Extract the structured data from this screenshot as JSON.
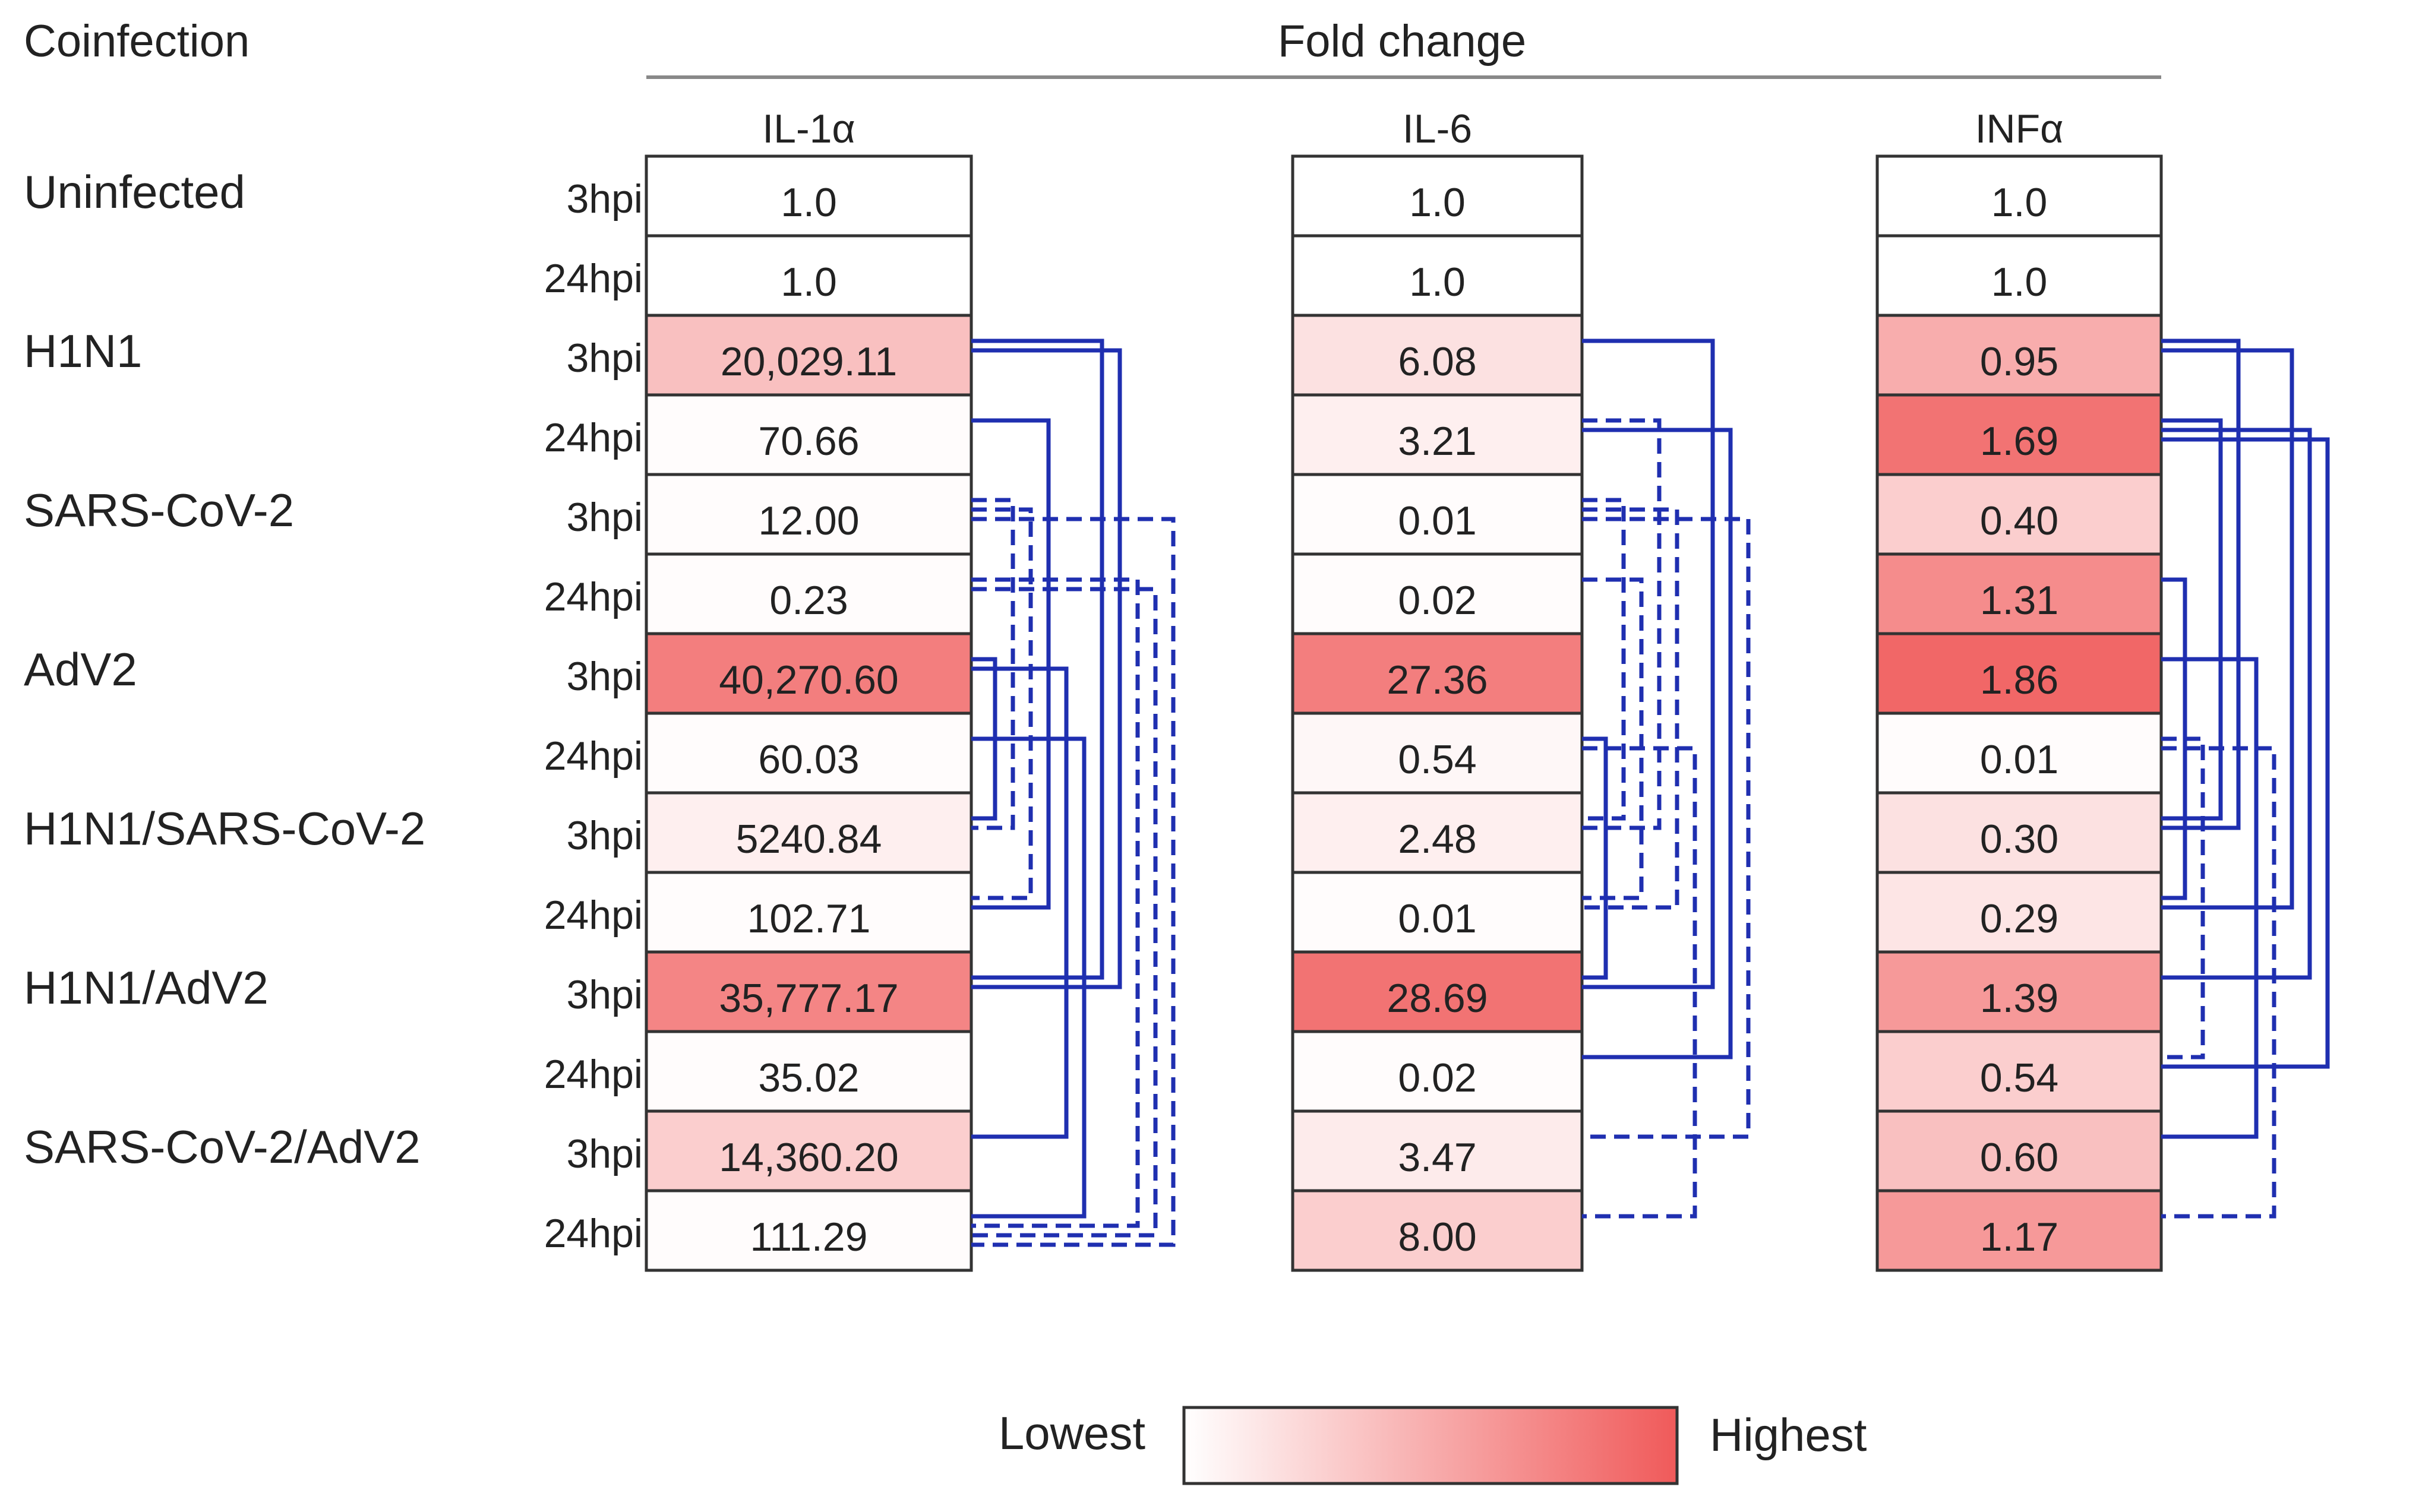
{
  "chart_data": {
    "type": "heatmap",
    "title": "Fold change",
    "row_header": "Coinfection",
    "groups": [
      "Uninfected",
      "H1N1",
      "SARS-CoV-2",
      "AdV2",
      "H1N1/SARS-CoV-2",
      "H1N1/AdV2",
      "SARS-CoV-2/AdV2"
    ],
    "timepoints": [
      "3hpi",
      "24hpi"
    ],
    "columns": [
      {
        "name": "IL-1α",
        "values": [
          "1.0",
          "1.0",
          "20,029.11",
          "70.66",
          "12.00",
          "0.23",
          "40,270.60",
          "60.03",
          "5240.84",
          "102.71",
          "35,777.17",
          "35.02",
          "14,360.20",
          "111.29"
        ],
        "intensity": [
          0,
          0,
          0.38,
          0.02,
          0.02,
          0.02,
          0.78,
          0.02,
          0.1,
          0.02,
          0.74,
          0.02,
          0.3,
          0.02
        ],
        "brackets": [
          {
            "from": 2,
            "to": 10,
            "style": "solid"
          },
          {
            "from": 2,
            "to": 10,
            "style": "solid"
          },
          {
            "from": 3,
            "to": 9,
            "style": "solid"
          },
          {
            "from": 4,
            "to": 8,
            "style": "dashed"
          },
          {
            "from": 4,
            "to": 9,
            "style": "dashed"
          },
          {
            "from": 4,
            "to": 13,
            "style": "dashed"
          },
          {
            "from": 5,
            "to": 13,
            "style": "dashed"
          },
          {
            "from": 5,
            "to": 13,
            "style": "dashed"
          },
          {
            "from": 6,
            "to": 8,
            "style": "solid"
          },
          {
            "from": 6,
            "to": 12,
            "style": "solid"
          },
          {
            "from": 7,
            "to": 13,
            "style": "solid"
          }
        ]
      },
      {
        "name": "IL-6",
        "values": [
          "1.0",
          "1.0",
          "6.08",
          "3.21",
          "0.01",
          "0.02",
          "27.36",
          "0.54",
          "2.48",
          "0.01",
          "28.69",
          "0.02",
          "3.47",
          "8.00"
        ],
        "intensity": [
          0,
          0,
          0.18,
          0.1,
          0.02,
          0.02,
          0.78,
          0.05,
          0.1,
          0.02,
          0.85,
          0.02,
          0.12,
          0.3
        ],
        "brackets": [
          {
            "from": 2,
            "to": 10,
            "style": "solid"
          },
          {
            "from": 3,
            "to": 8,
            "style": "dashed"
          },
          {
            "from": 3,
            "to": 11,
            "style": "solid"
          },
          {
            "from": 4,
            "to": 8,
            "style": "dashed"
          },
          {
            "from": 4,
            "to": 9,
            "style": "dashed"
          },
          {
            "from": 4,
            "to": 12,
            "style": "dashed"
          },
          {
            "from": 5,
            "to": 9,
            "style": "dashed"
          },
          {
            "from": 7,
            "to": 10,
            "style": "solid"
          },
          {
            "from": 7,
            "to": 13,
            "style": "dashed"
          }
        ]
      },
      {
        "name": "INFα",
        "values": [
          "1.0",
          "1.0",
          "0.95",
          "1.69",
          "0.40",
          "1.31",
          "1.86",
          "0.01",
          "0.30",
          "0.29",
          "1.39",
          "0.54",
          "0.60",
          "1.17"
        ],
        "intensity": [
          0,
          0,
          0.5,
          0.85,
          0.3,
          0.7,
          0.92,
          0.02,
          0.18,
          0.16,
          0.62,
          0.3,
          0.38,
          0.62
        ],
        "brackets": [
          {
            "from": 2,
            "to": 8,
            "style": "solid"
          },
          {
            "from": 2,
            "to": 9,
            "style": "solid"
          },
          {
            "from": 3,
            "to": 8,
            "style": "solid"
          },
          {
            "from": 3,
            "to": 10,
            "style": "solid"
          },
          {
            "from": 3,
            "to": 11,
            "style": "solid"
          },
          {
            "from": 5,
            "to": 9,
            "style": "solid"
          },
          {
            "from": 6,
            "to": 12,
            "style": "solid"
          },
          {
            "from": 7,
            "to": 11,
            "style": "dashed"
          },
          {
            "from": 7,
            "to": 13,
            "style": "dashed"
          }
        ]
      }
    ],
    "legend": {
      "low_label": "Lowest",
      "high_label": "Highest"
    },
    "colors": {
      "low": "#ffffff",
      "high": "#f05a5a",
      "bracket": "#1f2fb0",
      "grid": "#333333",
      "rule": "#888888"
    }
  }
}
